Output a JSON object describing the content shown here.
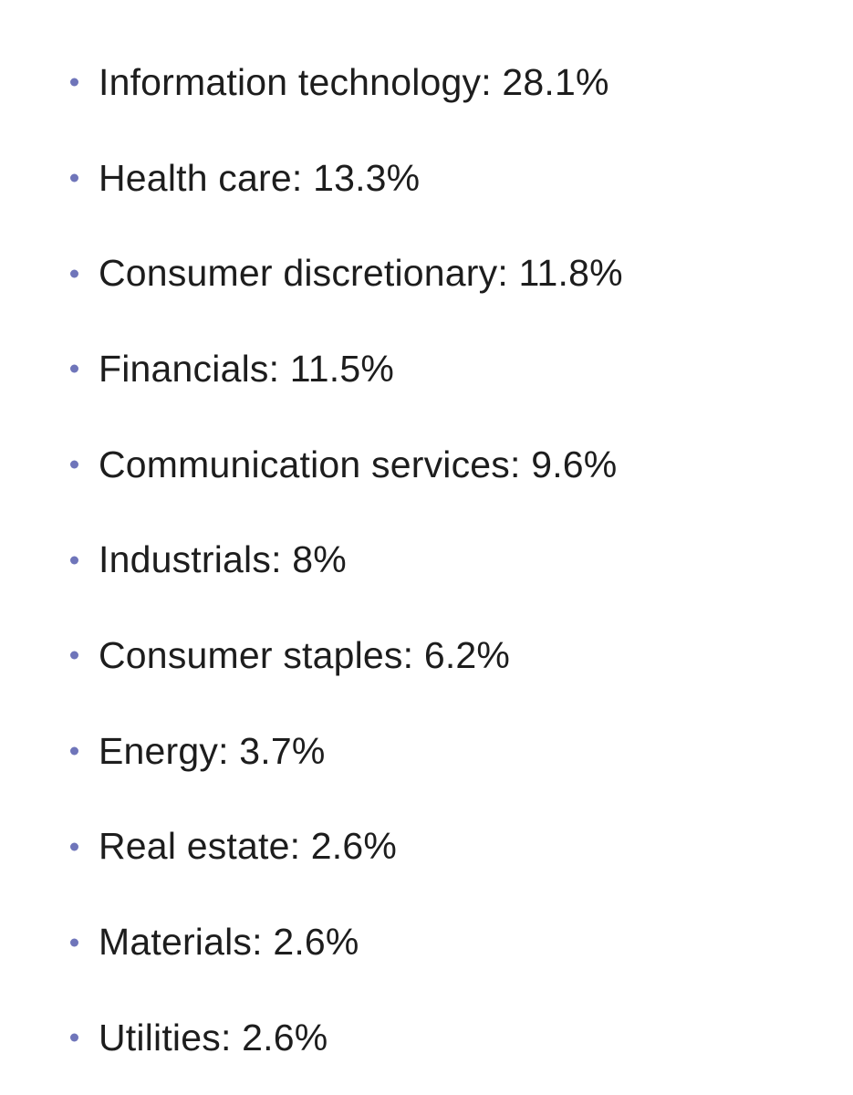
{
  "page": {
    "background_color": "#ffffff"
  },
  "list": {
    "bullet_color": "#6f75ba",
    "text_color": "#1d1d1d",
    "separator": ": ",
    "items": [
      {
        "label": "Information technology",
        "value": "28.1%"
      },
      {
        "label": "Health care",
        "value": "13.3%"
      },
      {
        "label": "Consumer discretionary",
        "value": "11.8%"
      },
      {
        "label": "Financials",
        "value": "11.5%"
      },
      {
        "label": "Communication services",
        "value": "9.6%"
      },
      {
        "label": "Industrials",
        "value": "8%"
      },
      {
        "label": "Consumer staples",
        "value": "6.2%"
      },
      {
        "label": "Energy",
        "value": "3.7%"
      },
      {
        "label": "Real estate",
        "value": "2.6%"
      },
      {
        "label": "Materials",
        "value": "2.6%"
      },
      {
        "label": "Utilities",
        "value": "2.6%"
      }
    ]
  }
}
